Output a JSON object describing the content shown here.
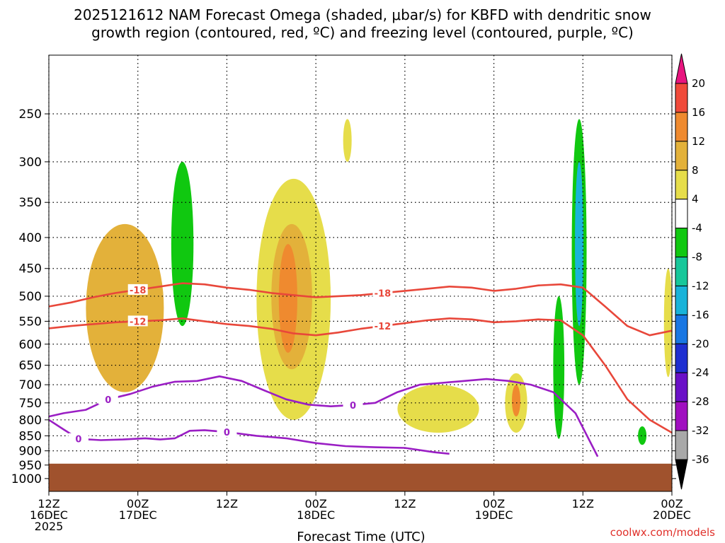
{
  "chart_data": {
    "type": "heatmap",
    "title_lines": [
      "2025121612 NAM Forecast Omega (shaded, μbar/s) for KBFD with dendritic snow",
      "growth region (contoured, red, ºC) and freezing level (contoured, purple, ºC)"
    ],
    "xlabel": "Forecast Time (UTC)",
    "ylabel": "",
    "y_scale": "log-pressure (inverted)",
    "ylim": [
      1050,
      200
    ],
    "y_ticks": [
      250,
      300,
      350,
      400,
      450,
      500,
      550,
      600,
      650,
      700,
      750,
      800,
      850,
      900,
      950,
      1000
    ],
    "x_range_hours": [
      0,
      84
    ],
    "x_ticks": [
      {
        "hour": 0,
        "line1": "12Z",
        "line2": "16DEC",
        "line3": "2025"
      },
      {
        "hour": 12,
        "line1": "00Z",
        "line2": "17DEC"
      },
      {
        "hour": 24,
        "line1": "12Z"
      },
      {
        "hour": 36,
        "line1": "00Z",
        "line2": "18DEC"
      },
      {
        "hour": 48,
        "line1": "12Z"
      },
      {
        "hour": 60,
        "line1": "00Z",
        "line2": "19DEC"
      },
      {
        "hour": 72,
        "line1": "12Z"
      },
      {
        "hour": 84,
        "line1": "00Z",
        "line2": "20DEC"
      }
    ],
    "grid": true,
    "colorbar": {
      "labels": [
        "20",
        "16",
        "12",
        "8",
        "4",
        "-4",
        "-8",
        "-12",
        "-16",
        "-20",
        "-24",
        "-28",
        "-32",
        "-36"
      ],
      "colors": [
        "#e8157f",
        "#f04a3a",
        "#ef8a2f",
        "#e3b13a",
        "#e6dd4a",
        "#ffffff",
        "#10c810",
        "#17c79a",
        "#19b3d9",
        "#1977e3",
        "#1f2fd1",
        "#6a10c7",
        "#a00fc0",
        "#a8a8a8",
        "#000000"
      ]
    },
    "shaded_regions": [
      {
        "level": 8,
        "hours": [
          5.0,
          11.0,
          13.5,
          15.5
        ],
        "pressure": [
          380,
          550,
          720,
          630
        ]
      },
      {
        "level": -4,
        "hours": [
          16.5,
          18.5,
          19.5,
          17.5
        ],
        "pressure": [
          300,
          430,
          560,
          520
        ]
      },
      {
        "level": 4,
        "hours": [
          28.0,
          33.0,
          38.0,
          35.0
        ],
        "pressure": [
          320,
          500,
          720,
          800
        ]
      },
      {
        "level": 8,
        "hours": [
          30.0,
          32.5,
          35.5,
          33.0
        ],
        "pressure": [
          380,
          500,
          640,
          660
        ]
      },
      {
        "level": 12,
        "hours": [
          31.0,
          32.0,
          33.5
        ],
        "pressure": [
          410,
          520,
          620
        ]
      },
      {
        "level": 4,
        "hours": [
          40.0,
          40.5
        ],
        "pressure": [
          255,
          300
        ]
      },
      {
        "level": 4,
        "hours": [
          47.0,
          55.0,
          58.0
        ],
        "pressure": [
          700,
          780,
          840
        ]
      },
      {
        "level": 4,
        "hours": [
          61.5,
          64.5
        ],
        "pressure": [
          670,
          840
        ]
      },
      {
        "level": 12,
        "hours": [
          62.5,
          63.5
        ],
        "pressure": [
          700,
          790
        ]
      },
      {
        "level": -4,
        "hours": [
          70.5,
          72.5
        ],
        "pressure": [
          255,
          700
        ]
      },
      {
        "level": -12,
        "hours": [
          71.0,
          72.0
        ],
        "pressure": [
          300,
          560
        ]
      },
      {
        "level": -4,
        "hours": [
          68.0,
          69.5
        ],
        "pressure": [
          500,
          860
        ]
      },
      {
        "level": 4,
        "hours": [
          83.0,
          84.0
        ],
        "pressure": [
          450,
          680
        ]
      },
      {
        "level": -4,
        "hours": [
          79.5,
          80.5
        ],
        "pressure": [
          820,
          880
        ]
      }
    ],
    "contours": [
      {
        "color": "#e8473a",
        "label": "-18",
        "hours": [
          0,
          3,
          6,
          9,
          12,
          15,
          18,
          21,
          24,
          27,
          30,
          33,
          36,
          39,
          42,
          45,
          48,
          51,
          54,
          57,
          60,
          63,
          66,
          69,
          72,
          75,
          78,
          81,
          84
        ],
        "pressure": [
          520,
          512,
          502,
          494,
          488,
          482,
          476,
          478,
          484,
          488,
          494,
          498,
          502,
          500,
          498,
          494,
          490,
          486,
          482,
          484,
          490,
          486,
          480,
          478,
          484,
          520,
          560,
          580,
          570
        ]
      },
      {
        "color": "#e8473a",
        "label": "-12",
        "hours": [
          0,
          3,
          6,
          9,
          12,
          15,
          18,
          21,
          24,
          27,
          30,
          33,
          36,
          39,
          42,
          45,
          48,
          51,
          54,
          57,
          60,
          63,
          66,
          69,
          72,
          75,
          78,
          81,
          84
        ],
        "pressure": [
          565,
          560,
          556,
          552,
          550,
          548,
          544,
          550,
          556,
          560,
          566,
          576,
          580,
          574,
          566,
          560,
          554,
          548,
          544,
          546,
          552,
          550,
          546,
          548,
          580,
          650,
          740,
          800,
          840
        ]
      },
      {
        "color": "#9a1ec4",
        "label": "0",
        "hours": [
          0,
          2,
          5,
          8,
          11,
          14,
          17,
          20,
          23,
          26,
          29,
          32,
          35,
          38,
          41,
          44,
          47,
          50,
          53,
          56,
          59,
          62,
          65,
          68,
          71,
          74
        ],
        "pressure": [
          790,
          780,
          770,
          740,
          725,
          705,
          692,
          690,
          678,
          690,
          715,
          740,
          755,
          760,
          756,
          750,
          720,
          700,
          695,
          690,
          685,
          690,
          700,
          720,
          780,
          920
        ]
      },
      {
        "color": "#9a1ec4",
        "label": "0",
        "hours": [
          0,
          2,
          4,
          7,
          10,
          13,
          15,
          17,
          19,
          21,
          24,
          28,
          32,
          36,
          40,
          44,
          48,
          52,
          54
        ],
        "pressure": [
          800,
          830,
          860,
          864,
          862,
          858,
          862,
          858,
          834,
          832,
          838,
          850,
          858,
          874,
          884,
          888,
          890,
          905,
          910
        ]
      }
    ],
    "surface_fill_color": "#a0522d",
    "surface_pressure": 945
  },
  "credit": "coolwx.com/models"
}
